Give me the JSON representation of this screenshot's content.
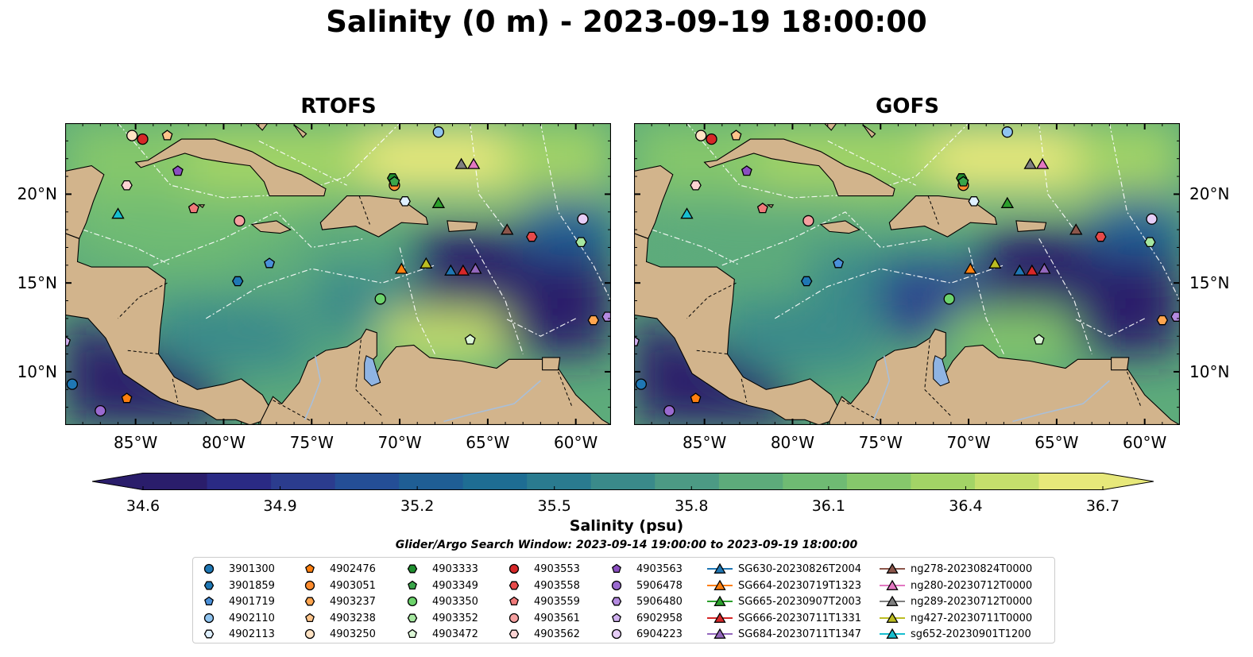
{
  "figure": {
    "title": "Salinity (0 m) - 2023-09-19 18:00:00",
    "search_window": "Glider/Argo Search Window: 2023-09-14 19:00:00 to 2023-09-19 18:00:00"
  },
  "colors": {
    "land": "#d2b48c",
    "lake": "#8fb4e3",
    "river": "#a9bfd9",
    "colormap": [
      "#2a1d6b",
      "#2a2a84",
      "#2b3c8e",
      "#244e96",
      "#1f5e94",
      "#1e6d93",
      "#2a7b8f",
      "#3a8a8a",
      "#4c9a84",
      "#5dab7b",
      "#6fbb73",
      "#86c86b",
      "#a3d466",
      "#c5df6c",
      "#e7e87a"
    ]
  },
  "chart_data": [
    {
      "type": "heatmap",
      "title": "RTOFS",
      "variable": "Salinity",
      "depth_m": 0,
      "xlim": [
        -89,
        -58
      ],
      "ylim": [
        7,
        24
      ],
      "xticks": [
        "85°W",
        "80°W",
        "75°W",
        "70°W",
        "65°W",
        "60°W"
      ],
      "yticks": [
        "10°N",
        "15°N",
        "20°N"
      ],
      "ytick_side": "left",
      "regions": [
        {
          "lon": -87,
          "lat": 22,
          "salinity": 36.2
        },
        {
          "lon": -80,
          "lat": 21.5,
          "salinity": 36.3
        },
        {
          "lon": -68,
          "lat": 23.5,
          "salinity": 36.6
        },
        {
          "lon": -62,
          "lat": 22,
          "salinity": 36.4
        },
        {
          "lon": -83,
          "lat": 18.5,
          "salinity": 36.1
        },
        {
          "lon": -76,
          "lat": 16,
          "salinity": 35.9
        },
        {
          "lon": -80,
          "lat": 12.5,
          "salinity": 35.7
        },
        {
          "lon": -72,
          "lat": 14,
          "salinity": 35.6
        },
        {
          "lon": -66,
          "lat": 16,
          "salinity": 34.7
        },
        {
          "lon": -62,
          "lat": 15,
          "salinity": 34.6
        },
        {
          "lon": -68,
          "lat": 12,
          "salinity": 36.5
        },
        {
          "lon": -60,
          "lat": 18,
          "salinity": 35.3
        },
        {
          "lon": -87,
          "lat": 10,
          "salinity": 34.6
        }
      ]
    },
    {
      "type": "heatmap",
      "title": "GOFS",
      "variable": "Salinity",
      "depth_m": 0,
      "xlim": [
        -89,
        -58
      ],
      "ylim": [
        7,
        24
      ],
      "xticks": [
        "85°W",
        "80°W",
        "75°W",
        "70°W",
        "65°W",
        "60°W"
      ],
      "yticks": [
        "10°N",
        "15°N",
        "20°N"
      ],
      "ytick_side": "right",
      "regions": [
        {
          "lon": -87,
          "lat": 22,
          "salinity": 36.2
        },
        {
          "lon": -80,
          "lat": 21.5,
          "salinity": 36.3
        },
        {
          "lon": -68,
          "lat": 23.5,
          "salinity": 36.6
        },
        {
          "lon": -62,
          "lat": 22,
          "salinity": 36.4
        },
        {
          "lon": -83,
          "lat": 18.5,
          "salinity": 36.0
        },
        {
          "lon": -76,
          "lat": 16,
          "salinity": 35.7
        },
        {
          "lon": -80,
          "lat": 12.5,
          "salinity": 35.6
        },
        {
          "lon": -72,
          "lat": 14,
          "salinity": 35.0
        },
        {
          "lon": -66,
          "lat": 16,
          "salinity": 34.7
        },
        {
          "lon": -62,
          "lat": 15,
          "salinity": 34.6
        },
        {
          "lon": -68,
          "lat": 12,
          "salinity": 36.2
        },
        {
          "lon": -60,
          "lat": 18,
          "salinity": 35.2
        },
        {
          "lon": -87,
          "lat": 10,
          "salinity": 34.6
        }
      ]
    }
  ],
  "colorbar": {
    "label": "Salinity (psu)",
    "vmin": 34.6,
    "vmax": 36.7,
    "ticks": [
      "34.6",
      "34.9",
      "35.2",
      "35.5",
      "35.8",
      "36.1",
      "36.4",
      "36.7"
    ],
    "extend": "both"
  },
  "markers": [
    {
      "id": "3901300",
      "marker": "circle",
      "color": "#1f77b4",
      "lon": -88.6,
      "lat": 9.3
    },
    {
      "id": "3901859",
      "marker": "hexagon",
      "color": "#1f77b4",
      "lon": -79.2,
      "lat": 15.1
    },
    {
      "id": "4901719",
      "marker": "pentagon",
      "color": "#4a90d9",
      "lon": -77.4,
      "lat": 16.1
    },
    {
      "id": "4902110",
      "marker": "circle",
      "color": "#8fc4f0",
      "lon": -67.8,
      "lat": 23.5
    },
    {
      "id": "4902113",
      "marker": "hexagon",
      "color": "#dff0ff",
      "lon": -69.7,
      "lat": 19.6
    },
    {
      "id": "4902476",
      "marker": "pentagon",
      "color": "#ff7f0e",
      "lon": -85.5,
      "lat": 8.5
    },
    {
      "id": "4903051",
      "marker": "circle",
      "color": "#ff8c2e",
      "lon": -70.3,
      "lat": 20.5
    },
    {
      "id": "4903237",
      "marker": "hexagon",
      "color": "#ffa54f",
      "lon": -59.0,
      "lat": 12.9
    },
    {
      "id": "4903238",
      "marker": "pentagon",
      "color": "#ffc48a",
      "lon": -83.2,
      "lat": 23.3
    },
    {
      "id": "4903250",
      "marker": "circle",
      "color": "#ffe3c4",
      "lon": -85.2,
      "lat": 23.3
    },
    {
      "id": "4903333",
      "marker": "hexagon",
      "color": "#1f8f2f",
      "lon": -70.4,
      "lat": 20.9
    },
    {
      "id": "4903349",
      "marker": "pentagon",
      "color": "#3aa64a",
      "lon": -70.3,
      "lat": 20.7
    },
    {
      "id": "4903350",
      "marker": "circle",
      "color": "#6cd36b",
      "lon": -71.1,
      "lat": 14.1
    },
    {
      "id": "4903352",
      "marker": "hexagon",
      "color": "#a6e8a0",
      "lon": -59.7,
      "lat": 17.3
    },
    {
      "id": "4903472",
      "marker": "pentagon",
      "color": "#dcf7d6",
      "lon": -66.0,
      "lat": 11.8
    },
    {
      "id": "4903553",
      "marker": "circle",
      "color": "#d62728",
      "lon": -84.6,
      "lat": 23.1
    },
    {
      "id": "4903558",
      "marker": "hexagon",
      "color": "#e84a4a",
      "lon": -62.5,
      "lat": 17.6
    },
    {
      "id": "4903559",
      "marker": "pentagon",
      "color": "#f07a7a",
      "lon": -81.7,
      "lat": 19.2
    },
    {
      "id": "4903561",
      "marker": "circle",
      "color": "#f5a0a0",
      "lon": -79.1,
      "lat": 18.5
    },
    {
      "id": "4903562",
      "marker": "hexagon",
      "color": "#fbd3d3",
      "lon": -85.5,
      "lat": 20.5
    },
    {
      "id": "4903563",
      "marker": "pentagon",
      "color": "#8a4fc0",
      "lon": -82.6,
      "lat": 21.3
    },
    {
      "id": "5906478",
      "marker": "circle",
      "color": "#9a6ad0",
      "lon": -87.0,
      "lat": 7.8
    },
    {
      "id": "5906480",
      "marker": "hexagon",
      "color": "#b48ae0",
      "lon": -58.2,
      "lat": 13.1
    },
    {
      "id": "6902958",
      "marker": "pentagon",
      "color": "#cfb0ef",
      "lon": -89.0,
      "lat": 11.7
    },
    {
      "id": "6904223",
      "marker": "circle",
      "color": "#e6cdf7",
      "lon": -59.6,
      "lat": 18.6
    },
    {
      "id": "SG630-20230826T2004",
      "marker": "triangle",
      "color": "#1f77b4",
      "lon": -67.1,
      "lat": 15.7
    },
    {
      "id": "SG664-20230719T1323",
      "marker": "triangle",
      "color": "#ff7f0e",
      "lon": -69.9,
      "lat": 15.8
    },
    {
      "id": "SG665-20230907T2003",
      "marker": "triangle",
      "color": "#2ca02c",
      "lon": -67.8,
      "lat": 19.5
    },
    {
      "id": "SG666-20230711T1331",
      "marker": "triangle",
      "color": "#d62728",
      "lon": -66.4,
      "lat": 15.7
    },
    {
      "id": "SG684-20230711T1347",
      "marker": "triangle",
      "color": "#9467bd",
      "lon": -65.7,
      "lat": 15.8
    },
    {
      "id": "ng278-20230824T0000",
      "marker": "triangle",
      "color": "#8c564b",
      "lon": -63.9,
      "lat": 18.0
    },
    {
      "id": "ng280-20230712T0000",
      "marker": "triangle",
      "color": "#e377c2",
      "lon": -65.8,
      "lat": 21.7
    },
    {
      "id": "ng289-20230712T0000",
      "marker": "triangle",
      "color": "#7f7f7f",
      "lon": -66.5,
      "lat": 21.7
    },
    {
      "id": "ng427-20230711T0000",
      "marker": "triangle",
      "color": "#bcbd22",
      "lon": -68.5,
      "lat": 16.1
    },
    {
      "id": "sg652-20230901T1200",
      "marker": "triangle",
      "color": "#17becf",
      "lon": -86.0,
      "lat": 18.9
    }
  ]
}
